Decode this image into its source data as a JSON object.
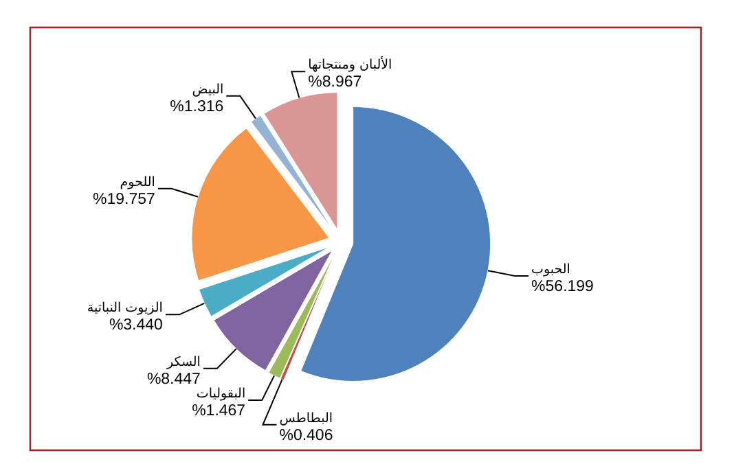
{
  "chart_data": {
    "type": "pie",
    "categories": [
      "الحبوب",
      "البطاطس",
      "البقوليات",
      "السكر",
      "الزيوت النباتية",
      "اللحوم",
      "البيض",
      "الألبان ومنتجاتها"
    ],
    "values": [
      56.199,
      0.406,
      1.467,
      8.447,
      3.44,
      19.757,
      1.316,
      8.967
    ],
    "colors": [
      "#4f81bd",
      "#c0504d",
      "#9bbb59",
      "#8064a2",
      "#4bacc6",
      "#f79646",
      "#95b3d7",
      "#d99694"
    ],
    "value_labels": [
      "%56.199",
      "%0.406",
      "%1.467",
      "%8.447",
      "%3.440",
      "%19.757",
      "%1.316",
      "%8.967"
    ]
  }
}
